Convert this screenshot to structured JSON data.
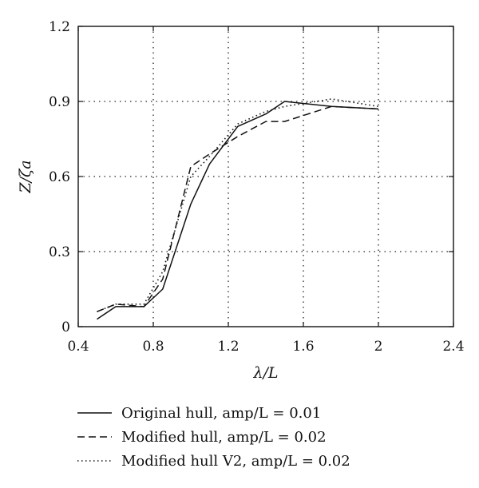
{
  "chart_data": {
    "type": "line",
    "title": "",
    "xlabel": "λ/L",
    "ylabel": "Z/ζa",
    "xlim": [
      0.4,
      2.4
    ],
    "ylim": [
      0,
      1.2
    ],
    "xticks": [
      0.4,
      0.8,
      1.2,
      1.6,
      2.0,
      2.4
    ],
    "xtick_labels": [
      "0.4",
      "0.8",
      "1.2",
      "1.6",
      "2",
      "2.4"
    ],
    "yticks": [
      0,
      0.3,
      0.6,
      0.9,
      1.2
    ],
    "ytick_labels": [
      "0",
      "0.3",
      "0.6",
      "0.9",
      "1.2"
    ],
    "grid": "dotted",
    "legend_position": "below",
    "series": [
      {
        "name": "Original hull, amp/L = 0.01",
        "style": "solid",
        "x": [
          0.5,
          0.6,
          0.75,
          0.85,
          1.0,
          1.1,
          1.25,
          1.4,
          1.5,
          1.75,
          2.0
        ],
        "y": [
          0.03,
          0.08,
          0.08,
          0.15,
          0.49,
          0.65,
          0.8,
          0.85,
          0.9,
          0.88,
          0.87
        ]
      },
      {
        "name": "Modified hull, amp/L = 0.02",
        "style": "dashed",
        "x": [
          0.5,
          0.6,
          0.75,
          0.85,
          1.0,
          1.1,
          1.25,
          1.4,
          1.5,
          1.75,
          2.0
        ],
        "y": [
          0.06,
          0.09,
          0.08,
          0.19,
          0.64,
          0.69,
          0.76,
          0.82,
          0.82,
          0.88,
          0.87
        ]
      },
      {
        "name": "Modified hull V2, amp/L = 0.02",
        "style": "dotted",
        "x": [
          0.5,
          0.6,
          0.75,
          0.85,
          1.0,
          1.1,
          1.25,
          1.4,
          1.5,
          1.75,
          2.0
        ],
        "y": [
          0.06,
          0.09,
          0.09,
          0.22,
          0.6,
          0.68,
          0.81,
          0.86,
          0.88,
          0.91,
          0.88
        ]
      }
    ]
  }
}
